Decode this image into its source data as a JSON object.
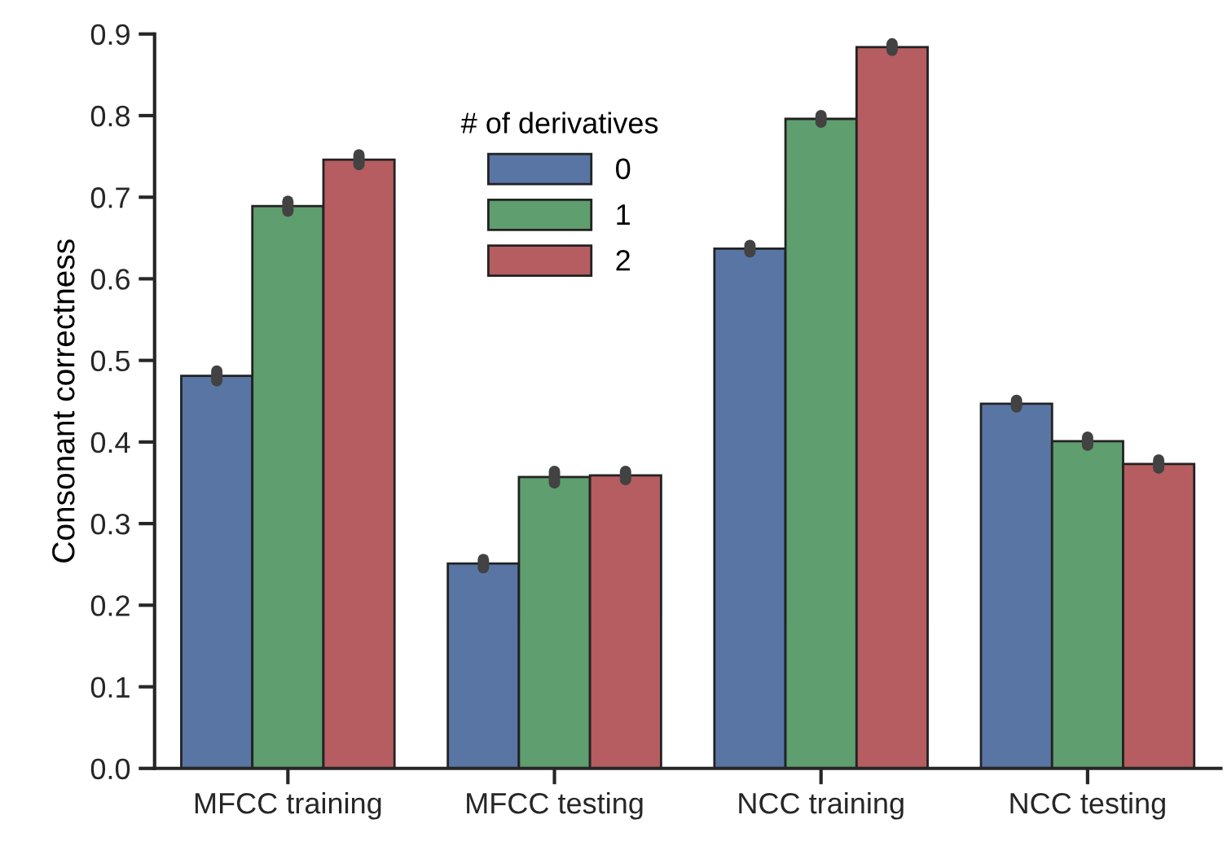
{
  "chart_data": {
    "type": "bar",
    "ylabel": "Consonant correctness",
    "legend_title": "# of derivatives",
    "categories": [
      "MFCC training",
      "MFCC testing",
      "NCC training",
      "NCC testing"
    ],
    "series": [
      {
        "name": "0",
        "color": "#5975a4",
        "values": [
          0.481,
          0.251,
          0.637,
          0.447
        ],
        "errors": [
          0.006,
          0.005,
          0.004,
          0.004
        ]
      },
      {
        "name": "1",
        "color": "#5f9e6e",
        "values": [
          0.689,
          0.357,
          0.796,
          0.401
        ],
        "errors": [
          0.006,
          0.007,
          0.004,
          0.005
        ]
      },
      {
        "name": "2",
        "color": "#b55d60",
        "values": [
          0.746,
          0.359,
          0.884,
          0.373
        ],
        "errors": [
          0.006,
          0.005,
          0.004,
          0.005
        ]
      }
    ],
    "ylim": [
      0,
      0.9
    ],
    "yticks": [
      {
        "value": 0,
        "label": "0.0"
      },
      0.1,
      0.2,
      0.3,
      0.4,
      0.5,
      0.6,
      0.7,
      0.8,
      0.9
    ],
    "grid": false,
    "legend": "top"
  }
}
